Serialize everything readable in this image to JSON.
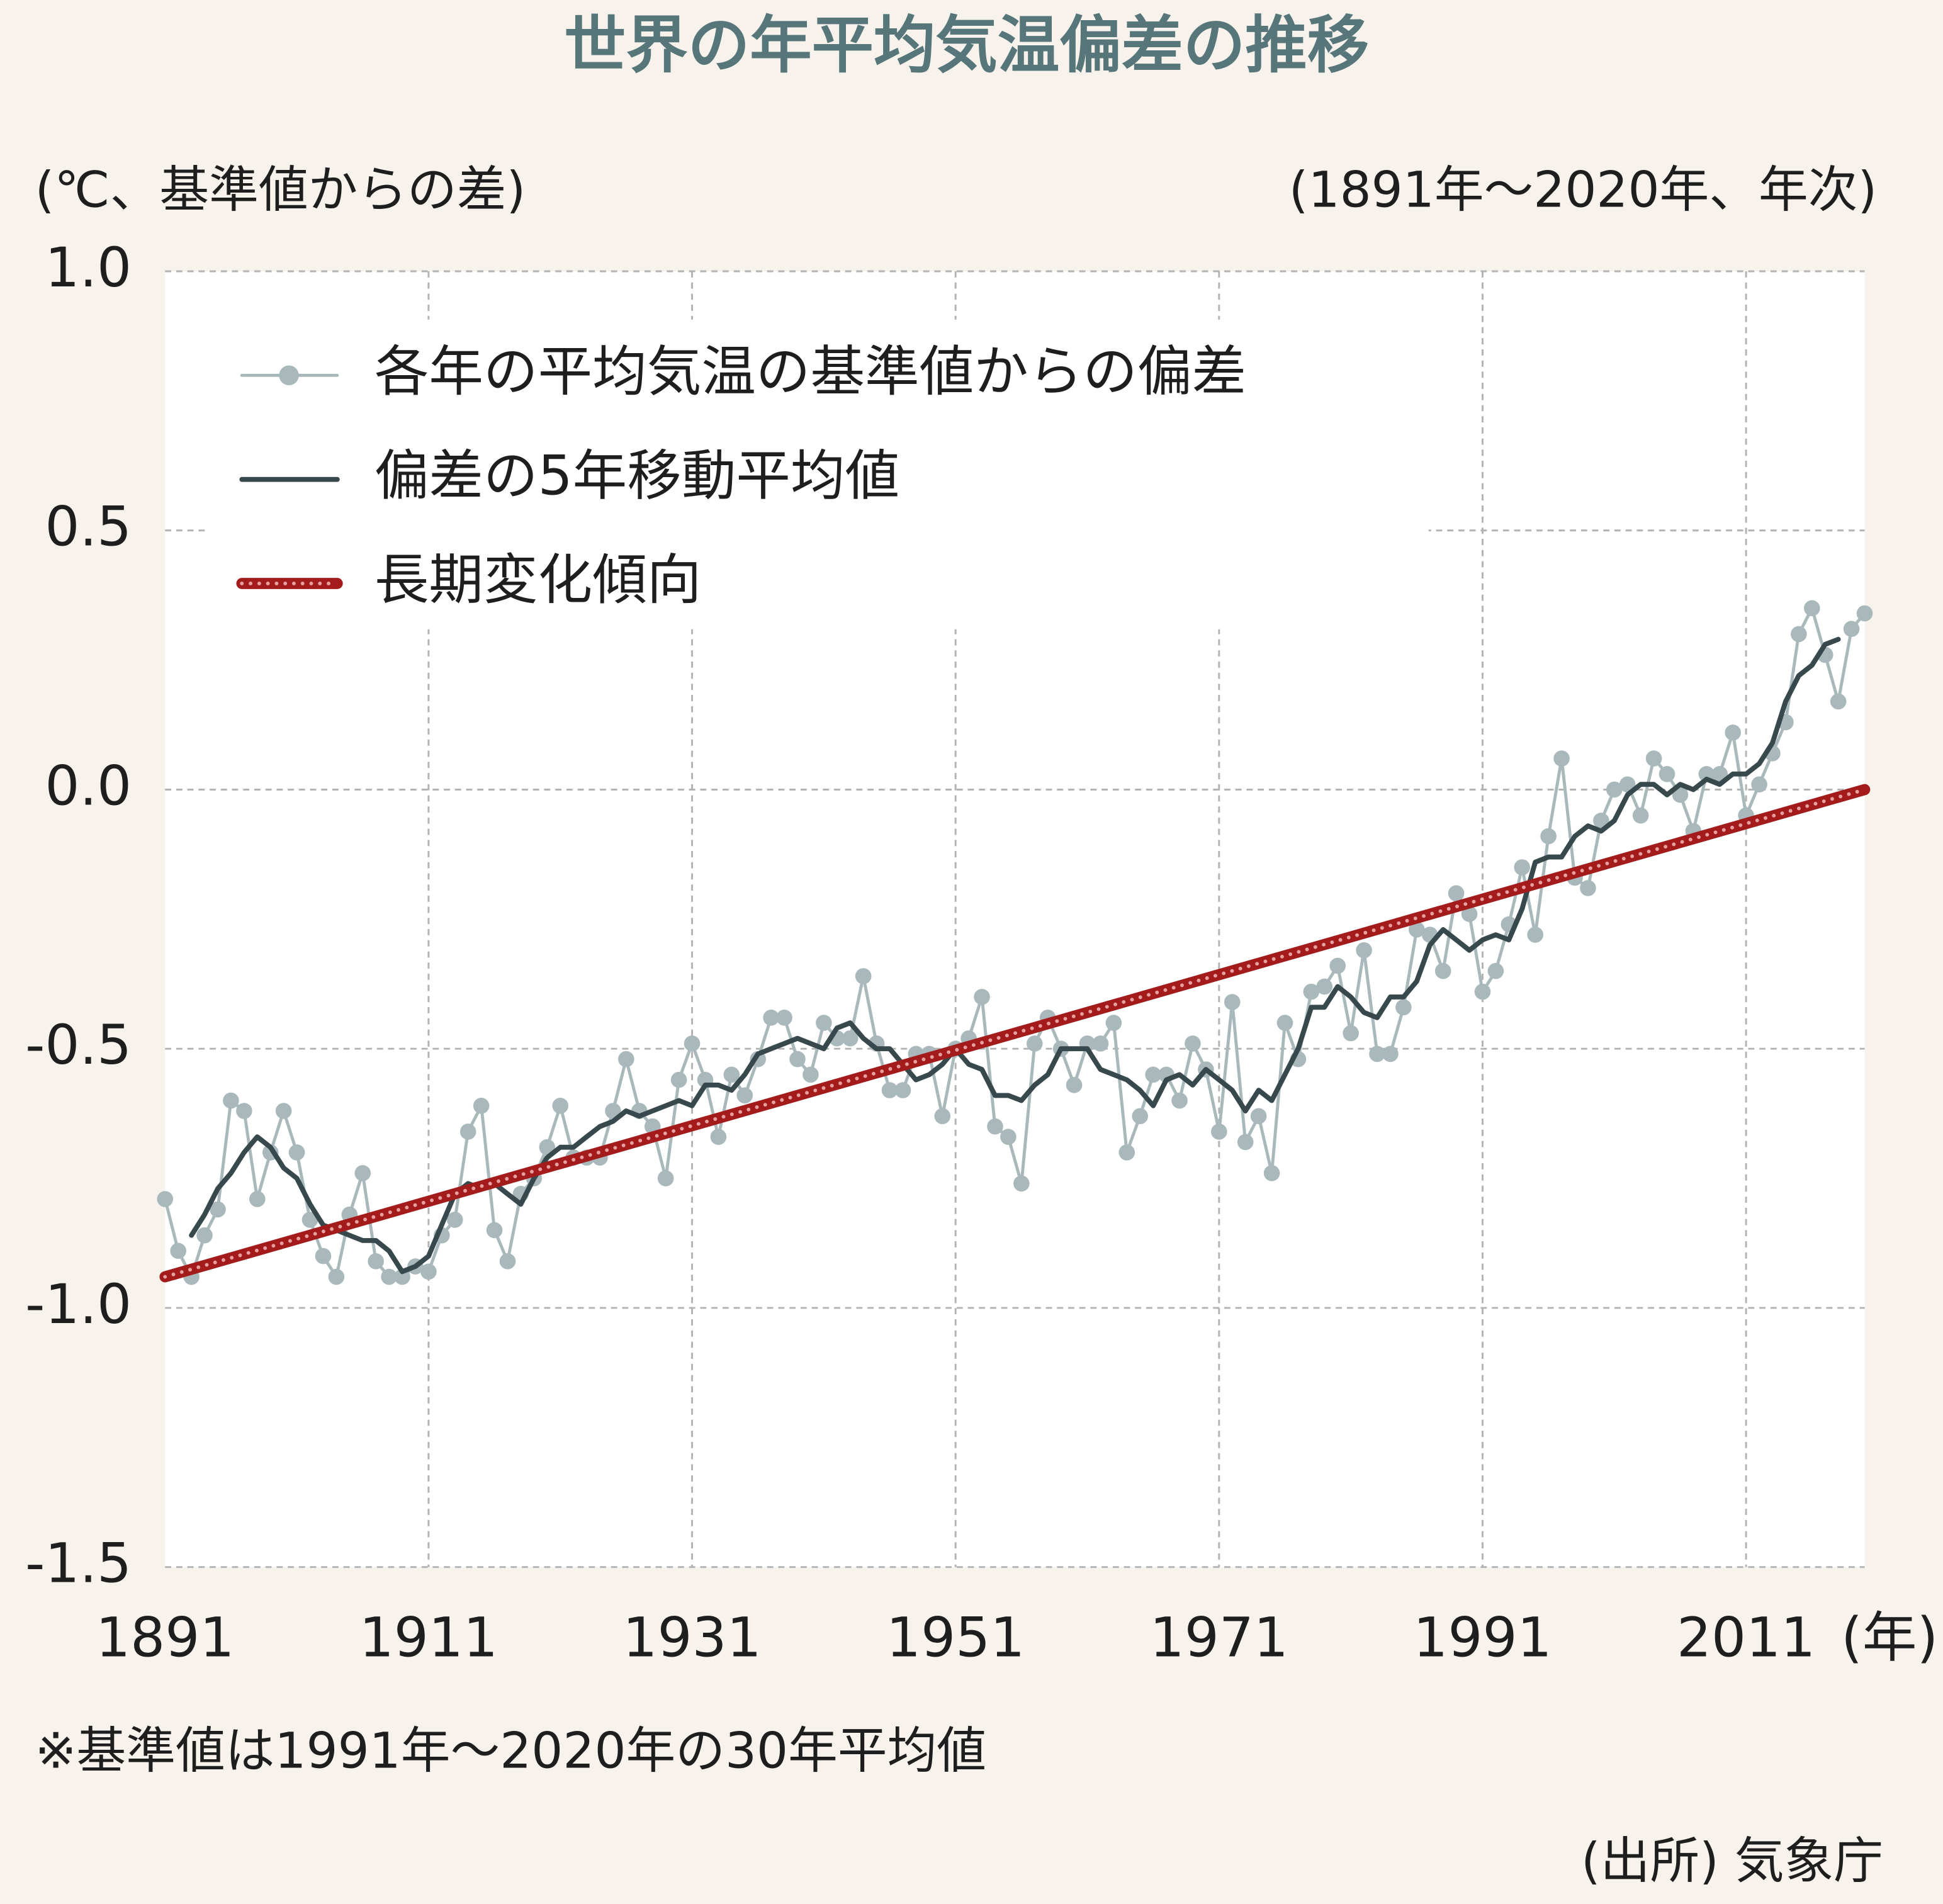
{
  "chart_data": {
    "type": "line",
    "title": "世界の年平均気温偏差の推移",
    "y_unit": "(℃、基準値からの差)",
    "subtitle": "(1891年〜2020年、年次)",
    "x_unit": "(年)",
    "note": "※基準値は1991年〜2020年の30年平均値",
    "source": "(出所) 気象庁",
    "x": [
      1891,
      1892,
      1893,
      1894,
      1895,
      1896,
      1897,
      1898,
      1899,
      1900,
      1901,
      1902,
      1903,
      1904,
      1905,
      1906,
      1907,
      1908,
      1909,
      1910,
      1911,
      1912,
      1913,
      1914,
      1915,
      1916,
      1917,
      1918,
      1919,
      1920,
      1921,
      1922,
      1923,
      1924,
      1925,
      1926,
      1927,
      1928,
      1929,
      1930,
      1931,
      1932,
      1933,
      1934,
      1935,
      1936,
      1937,
      1938,
      1939,
      1940,
      1941,
      1942,
      1943,
      1944,
      1945,
      1946,
      1947,
      1948,
      1949,
      1950,
      1951,
      1952,
      1953,
      1954,
      1955,
      1956,
      1957,
      1958,
      1959,
      1960,
      1961,
      1962,
      1963,
      1964,
      1965,
      1966,
      1967,
      1968,
      1969,
      1970,
      1971,
      1972,
      1973,
      1974,
      1975,
      1976,
      1977,
      1978,
      1979,
      1980,
      1981,
      1982,
      1983,
      1984,
      1985,
      1986,
      1987,
      1988,
      1989,
      1990,
      1991,
      1992,
      1993,
      1994,
      1995,
      1996,
      1997,
      1998,
      1999,
      2000,
      2001,
      2002,
      2003,
      2004,
      2005,
      2006,
      2007,
      2008,
      2009,
      2010,
      2011,
      2012,
      2013,
      2014,
      2015,
      2016,
      2017,
      2018,
      2019,
      2020
    ],
    "series": [
      {
        "name": "各年の平均気温の基準値からの偏差",
        "color": "#a9b8bb",
        "markers": true,
        "width": 2.5,
        "values": [
          -0.79,
          -0.89,
          -0.94,
          -0.86,
          -0.81,
          -0.6,
          -0.62,
          -0.79,
          -0.7,
          -0.62,
          -0.7,
          -0.83,
          -0.9,
          -0.94,
          -0.82,
          -0.74,
          -0.91,
          -0.94,
          -0.94,
          -0.92,
          -0.93,
          -0.86,
          -0.83,
          -0.66,
          -0.61,
          -0.85,
          -0.91,
          -0.78,
          -0.75,
          -0.69,
          -0.61,
          -0.71,
          -0.71,
          -0.71,
          -0.62,
          -0.52,
          -0.62,
          -0.65,
          -0.75,
          -0.56,
          -0.49,
          -0.56,
          -0.67,
          -0.55,
          -0.59,
          -0.52,
          -0.44,
          -0.44,
          -0.52,
          -0.55,
          -0.45,
          -0.48,
          -0.48,
          -0.36,
          -0.49,
          -0.58,
          -0.58,
          -0.51,
          -0.51,
          -0.63,
          -0.5,
          -0.48,
          -0.4,
          -0.65,
          -0.67,
          -0.76,
          -0.49,
          -0.44,
          -0.5,
          -0.57,
          -0.49,
          -0.49,
          -0.45,
          -0.7,
          -0.63,
          -0.55,
          -0.55,
          -0.6,
          -0.49,
          -0.54,
          -0.66,
          -0.41,
          -0.68,
          -0.63,
          -0.74,
          -0.45,
          -0.52,
          -0.39,
          -0.38,
          -0.34,
          -0.47,
          -0.31,
          -0.51,
          -0.51,
          -0.42,
          -0.27,
          -0.28,
          -0.35,
          -0.2,
          -0.24,
          -0.39,
          -0.35,
          -0.26,
          -0.15,
          -0.28,
          -0.09,
          0.06,
          -0.17,
          -0.19,
          -0.06,
          0.0,
          0.01,
          -0.05,
          0.06,
          0.03,
          -0.01,
          -0.08,
          0.03,
          0.03,
          0.11,
          -0.05,
          0.01,
          0.07,
          0.13,
          0.3,
          0.35,
          0.26,
          0.17,
          0.31,
          0.34
        ]
      },
      {
        "name": "偏差の5年移動平均値",
        "color": "#37494c",
        "width": 4,
        "values": [
          null,
          null,
          -0.86,
          -0.82,
          -0.77,
          -0.74,
          -0.7,
          -0.67,
          -0.69,
          -0.73,
          -0.75,
          -0.8,
          -0.84,
          -0.85,
          -0.86,
          -0.87,
          -0.87,
          -0.89,
          -0.93,
          -0.92,
          -0.9,
          -0.84,
          -0.78,
          -0.76,
          -0.77,
          -0.76,
          -0.78,
          -0.8,
          -0.75,
          -0.71,
          -0.69,
          -0.69,
          -0.67,
          -0.65,
          -0.64,
          -0.62,
          -0.63,
          -0.62,
          -0.61,
          -0.6,
          -0.61,
          -0.57,
          -0.57,
          -0.58,
          -0.55,
          -0.51,
          -0.5,
          -0.49,
          -0.48,
          -0.49,
          -0.5,
          -0.46,
          -0.45,
          -0.48,
          -0.5,
          -0.5,
          -0.53,
          -0.56,
          -0.55,
          -0.53,
          -0.5,
          -0.53,
          -0.54,
          -0.59,
          -0.59,
          -0.6,
          -0.57,
          -0.55,
          -0.5,
          -0.5,
          -0.5,
          -0.54,
          -0.55,
          -0.56,
          -0.58,
          -0.61,
          -0.56,
          -0.55,
          -0.57,
          -0.54,
          -0.56,
          -0.58,
          -0.62,
          -0.58,
          -0.6,
          -0.55,
          -0.5,
          -0.42,
          -0.42,
          -0.38,
          -0.4,
          -0.43,
          -0.44,
          -0.4,
          -0.4,
          -0.37,
          -0.3,
          -0.27,
          -0.29,
          -0.31,
          -0.29,
          -0.28,
          -0.29,
          -0.23,
          -0.14,
          -0.13,
          -0.13,
          -0.09,
          -0.07,
          -0.08,
          -0.06,
          -0.01,
          0.01,
          0.01,
          -0.01,
          0.01,
          0.0,
          0.02,
          0.01,
          0.03,
          0.03,
          0.05,
          0.09,
          0.17,
          0.22,
          0.24,
          0.28,
          0.29,
          null,
          null
        ]
      },
      {
        "name": "長期変化傾向",
        "color": "#a31b1b",
        "dotted": true,
        "width": 9,
        "x": [
          1891,
          2020
        ],
        "values": [
          -0.94,
          0.0
        ]
      }
    ],
    "xlim": [
      1891,
      2020
    ],
    "xticks": [
      1891,
      1911,
      1931,
      1951,
      1971,
      1991,
      2011
    ],
    "ylim": [
      -1.5,
      1.0
    ],
    "yticks": [
      {
        "value": 1,
        "label": "1.0"
      },
      0.5,
      {
        "value": 0,
        "label": "0.0"
      },
      -0.5,
      {
        "value": -1,
        "label": "-1.0"
      },
      -1.5
    ],
    "grid": true,
    "legend": "upper left"
  }
}
